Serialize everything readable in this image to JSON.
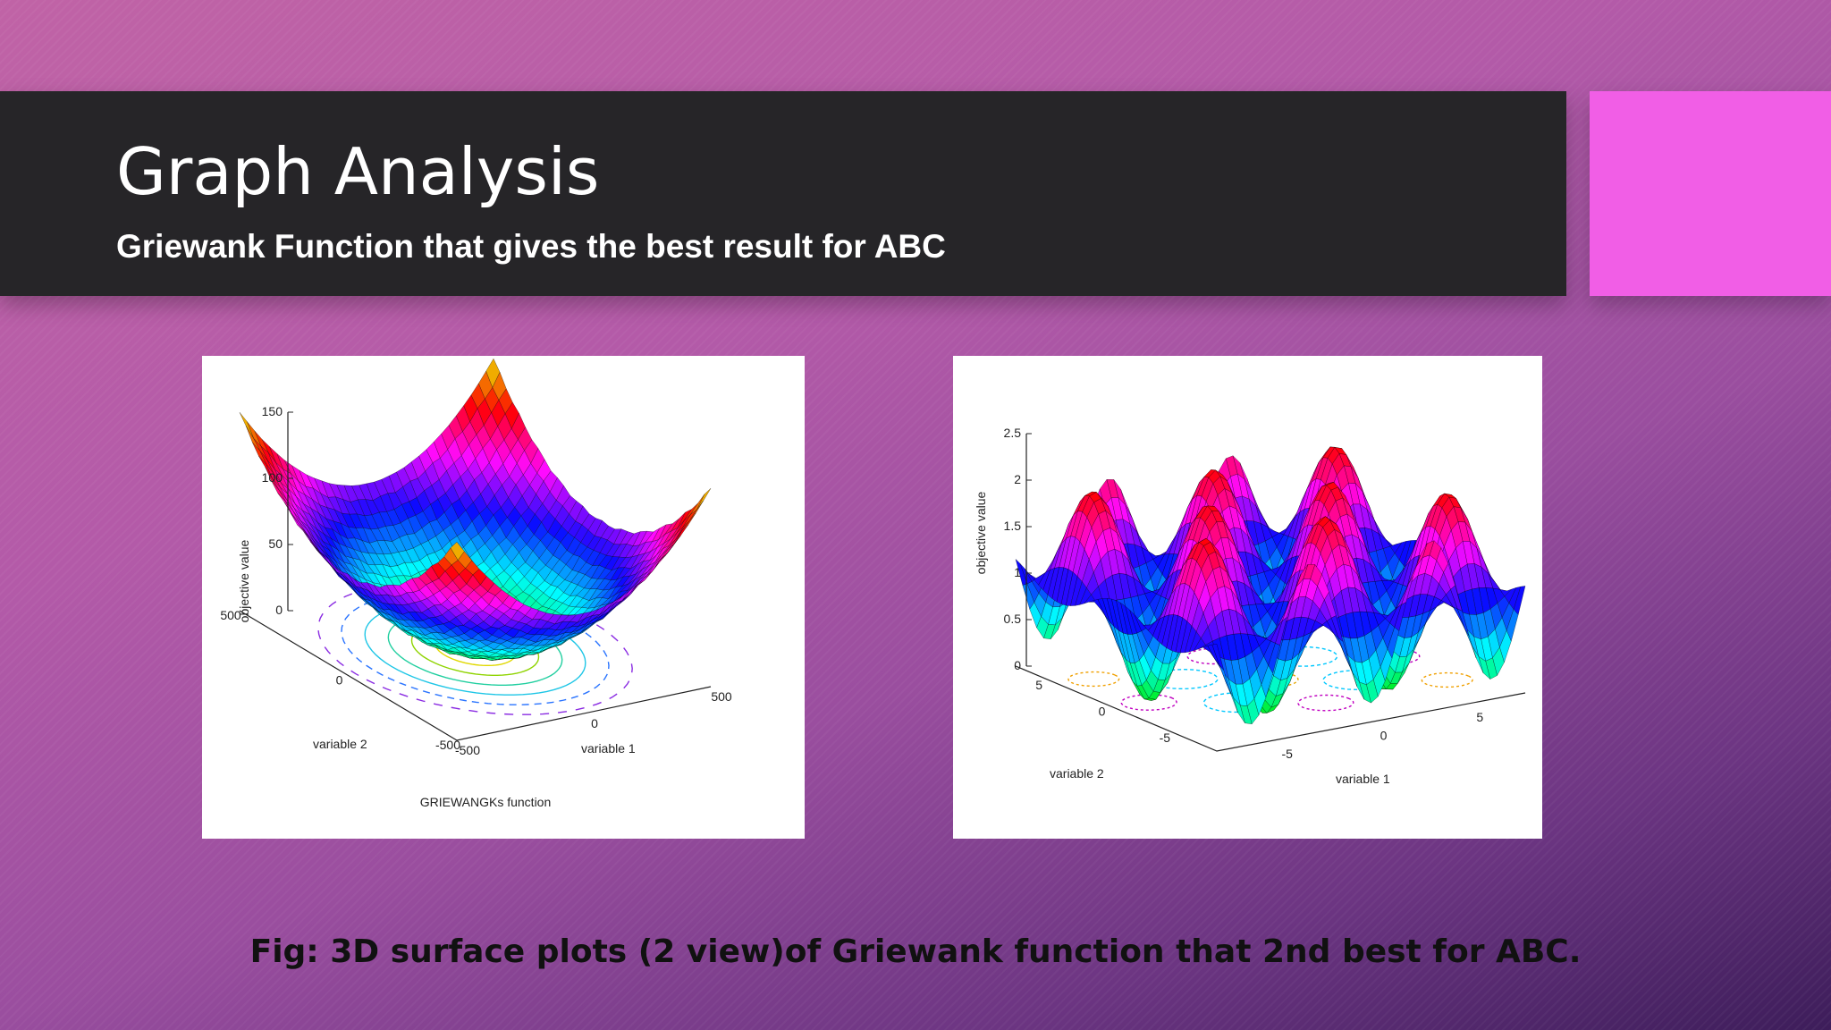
{
  "slide": {
    "title": "Graph Analysis",
    "subtitle": "Griewank Function that gives the best result for ABC",
    "caption": "Fig: 3D surface plots (2 view)of Griewank function that 2nd best for ABC.",
    "accent_color": "#f15ee6",
    "title_bar_color": "#262528"
  },
  "chart_data": [
    {
      "type": "surface",
      "title": "GRIEWANGKs function",
      "xlabel": "variable 1",
      "ylabel": "variable 2",
      "zlabel": "objective value",
      "xlim": [
        -500,
        500
      ],
      "ylim": [
        -500,
        500
      ],
      "zlim": [
        0,
        150
      ],
      "x_ticks": [
        "-500",
        "0",
        "500"
      ],
      "y_ticks": [
        "-500",
        "0",
        "500"
      ],
      "z_ticks": [
        "0",
        "50",
        "100",
        "150"
      ],
      "colormap": "hsv",
      "contours_on_base": true
    },
    {
      "type": "surface",
      "title": "",
      "xlabel": "variable 1",
      "ylabel": "variable 2",
      "zlabel": "objective value",
      "xlim": [
        -8,
        8
      ],
      "ylim": [
        -8,
        8
      ],
      "zlim": [
        0,
        2.5
      ],
      "x_ticks": [
        "-5",
        "0",
        "5"
      ],
      "y_ticks": [
        "-5",
        "0",
        "5"
      ],
      "z_ticks": [
        "0",
        "0.5",
        "1",
        "1.5",
        "2",
        "2.5"
      ],
      "colormap": "hsv",
      "contours_on_base": true
    }
  ]
}
